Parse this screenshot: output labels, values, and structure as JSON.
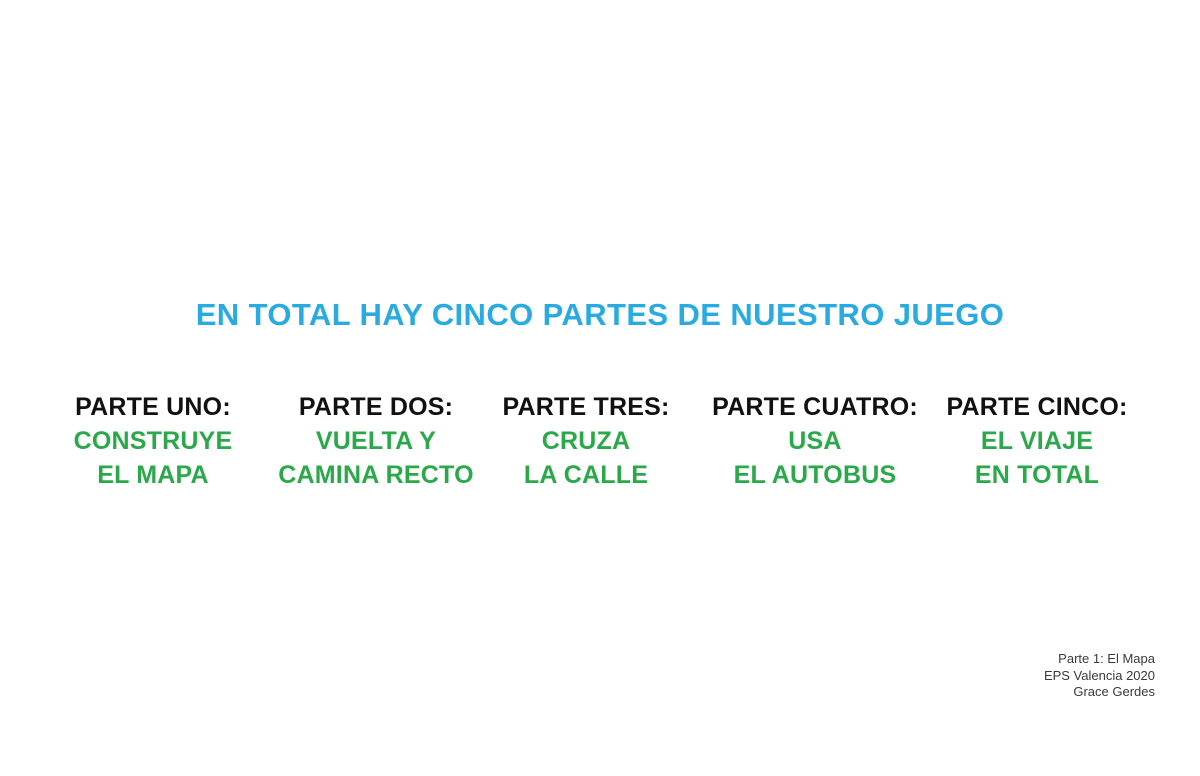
{
  "title": {
    "text": "EN TOTAL HAY CINCO PARTES DE NUESTRO JUEGO"
  },
  "parts": [
    {
      "label": "PARTE UNO:",
      "lines": [
        "CONSTRUYE",
        "EL MAPA"
      ]
    },
    {
      "label": "PARTE DOS:",
      "lines": [
        "VUELTA Y",
        "CAMINA RECTO"
      ]
    },
    {
      "label": "PARTE TRES:",
      "lines": [
        "CRUZA",
        "LA CALLE"
      ]
    },
    {
      "label": "PARTE CUATRO:",
      "lines": [
        "USA",
        "EL AUTOBUS"
      ]
    },
    {
      "label": "PARTE CINCO:",
      "lines": [
        "EL VIAJE",
        "EN TOTAL"
      ]
    }
  ],
  "footer": {
    "lines": [
      "Parte 1: El Mapa",
      "EPS Valencia 2020",
      "Grace Gerdes"
    ]
  },
  "colors": {
    "title_blue": "#29abe2",
    "part_label_black": "#111111",
    "part_value_green": "#2ba84a",
    "footer_gray": "#3a3a3a",
    "background": "#ffffff"
  }
}
